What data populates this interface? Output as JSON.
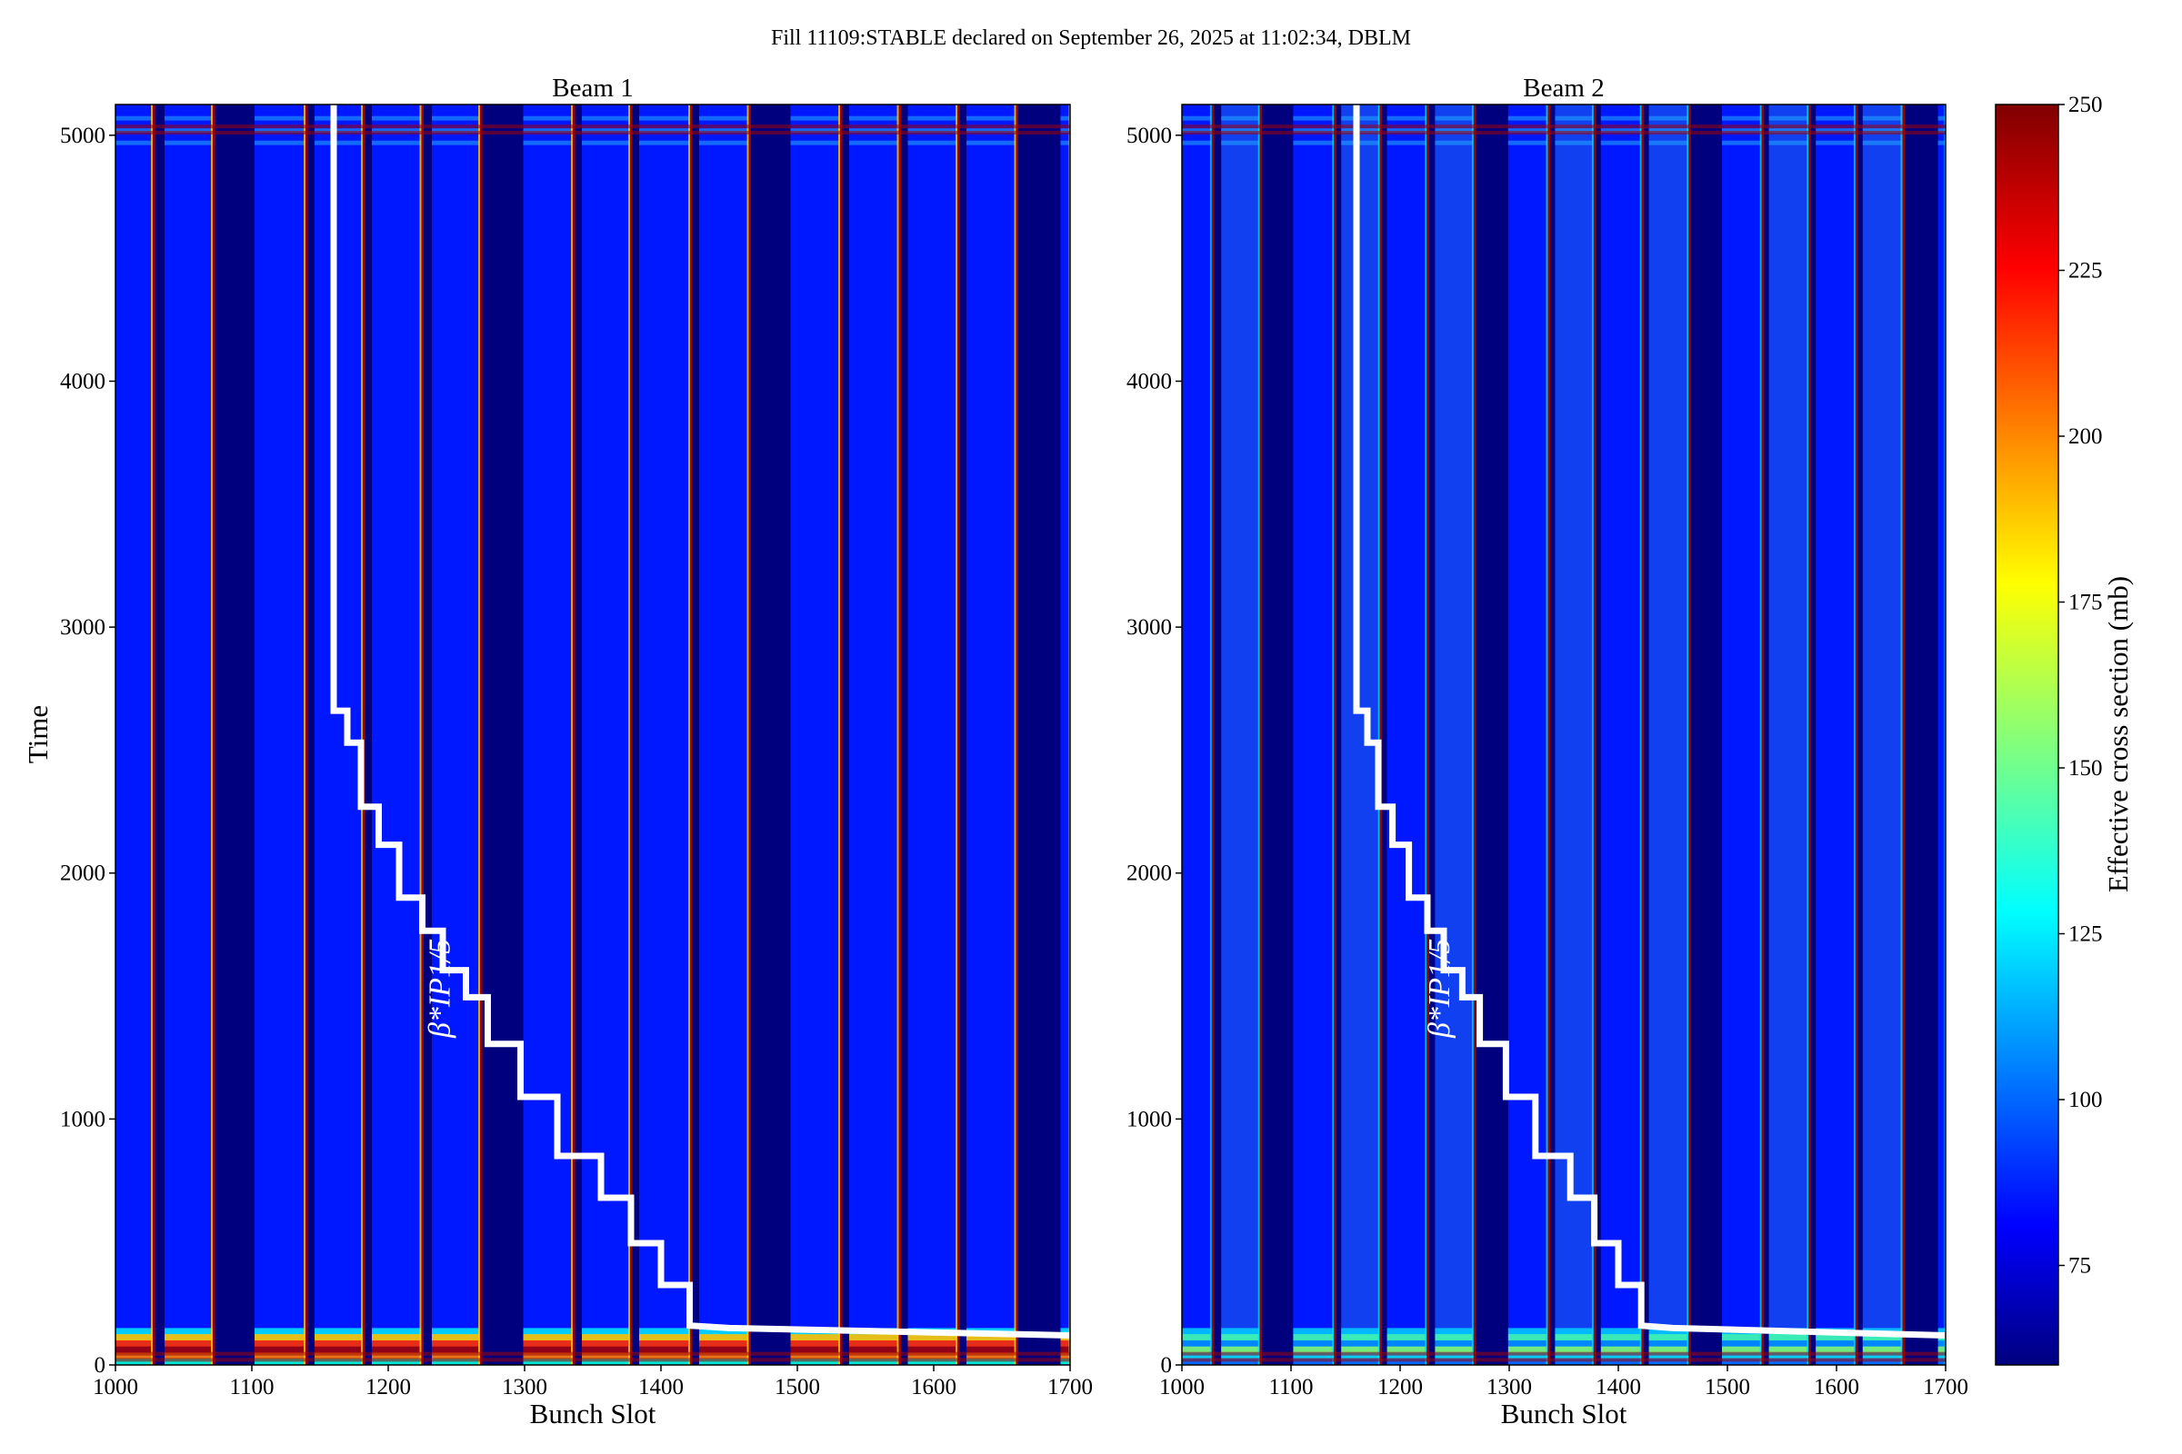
{
  "title": "Fill 11109:STABLE declared on September 26, 2025 at 11:02:34, DBLM",
  "chart_data": [
    {
      "type": "heatmap",
      "title": "Beam 1",
      "xlabel": "Bunch Slot",
      "ylabel": "Time",
      "xlim": [
        1000,
        1700
      ],
      "ylim": [
        0,
        5125
      ],
      "xticks": [
        "1000",
        "1100",
        "1200",
        "1300",
        "1400",
        "1500",
        "1600",
        "1700"
      ],
      "yticks": [
        "0",
        "1000",
        "2000",
        "3000",
        "4000",
        "5000"
      ],
      "trains": [
        [
          1000,
          1027
        ],
        [
          1036,
          1071
        ],
        [
          1102,
          1139
        ],
        [
          1146,
          1181
        ],
        [
          1188,
          1224
        ],
        [
          1232,
          1267
        ],
        [
          1299,
          1335
        ],
        [
          1342,
          1377
        ],
        [
          1384,
          1421
        ],
        [
          1428,
          1464
        ],
        [
          1495,
          1531
        ],
        [
          1538,
          1574
        ],
        [
          1581,
          1617
        ],
        [
          1624,
          1660
        ],
        [
          1693,
          1700
        ]
      ],
      "early_colors": [
        "#00e0ff",
        "#ffd000",
        "#ff3000",
        "#a00000",
        "#ff8000",
        "#00ffd0"
      ],
      "annotation": "β*IP1/5",
      "overlay_line": {
        "color": "#ffffff",
        "points": [
          [
            1160,
            5125
          ],
          [
            1160,
            2660
          ],
          [
            1170,
            2660
          ],
          [
            1170,
            2530
          ],
          [
            1180,
            2530
          ],
          [
            1180,
            2270
          ],
          [
            1193,
            2270
          ],
          [
            1193,
            2115
          ],
          [
            1208,
            2115
          ],
          [
            1208,
            1900
          ],
          [
            1225,
            1900
          ],
          [
            1225,
            1765
          ],
          [
            1240,
            1765
          ],
          [
            1240,
            1605
          ],
          [
            1257,
            1605
          ],
          [
            1257,
            1495
          ],
          [
            1273,
            1495
          ],
          [
            1273,
            1305
          ],
          [
            1297,
            1305
          ],
          [
            1297,
            1090
          ],
          [
            1324,
            1090
          ],
          [
            1324,
            850
          ],
          [
            1356,
            850
          ],
          [
            1356,
            680
          ],
          [
            1378,
            680
          ],
          [
            1378,
            495
          ],
          [
            1400,
            495
          ],
          [
            1400,
            325
          ],
          [
            1421,
            325
          ],
          [
            1421,
            160
          ],
          [
            1450,
            150
          ],
          [
            1700,
            120
          ]
        ]
      }
    },
    {
      "type": "heatmap",
      "title": "Beam 2",
      "xlabel": "Bunch Slot",
      "xlim": [
        1000,
        1700
      ],
      "ylim": [
        0,
        5125
      ],
      "xticks": [
        "1000",
        "1100",
        "1200",
        "1300",
        "1400",
        "1500",
        "1600",
        "1700"
      ],
      "yticks": [
        "0",
        "1000",
        "2000",
        "3000",
        "4000",
        "5000"
      ],
      "trains": [
        [
          1000,
          1027
        ],
        [
          1036,
          1071
        ],
        [
          1102,
          1139
        ],
        [
          1146,
          1181
        ],
        [
          1188,
          1224
        ],
        [
          1232,
          1267
        ],
        [
          1299,
          1335
        ],
        [
          1342,
          1377
        ],
        [
          1384,
          1421
        ],
        [
          1428,
          1464
        ],
        [
          1495,
          1531
        ],
        [
          1538,
          1574
        ],
        [
          1581,
          1617
        ],
        [
          1624,
          1660
        ],
        [
          1693,
          1700
        ]
      ],
      "early_colors": [
        "#00c8ff",
        "#40ffb0",
        "#0090ff",
        "#80ff70",
        "#00e0ff",
        "#0070ff"
      ],
      "annotation": "β*IP1/5",
      "overlay_line": {
        "color": "#ffffff",
        "points": [
          [
            1160,
            5125
          ],
          [
            1160,
            2660
          ],
          [
            1170,
            2660
          ],
          [
            1170,
            2530
          ],
          [
            1180,
            2530
          ],
          [
            1180,
            2270
          ],
          [
            1193,
            2270
          ],
          [
            1193,
            2115
          ],
          [
            1208,
            2115
          ],
          [
            1208,
            1900
          ],
          [
            1225,
            1900
          ],
          [
            1225,
            1765
          ],
          [
            1240,
            1765
          ],
          [
            1240,
            1605
          ],
          [
            1257,
            1605
          ],
          [
            1257,
            1495
          ],
          [
            1273,
            1495
          ],
          [
            1273,
            1305
          ],
          [
            1297,
            1305
          ],
          [
            1297,
            1090
          ],
          [
            1324,
            1090
          ],
          [
            1324,
            850
          ],
          [
            1356,
            850
          ],
          [
            1356,
            680
          ],
          [
            1378,
            680
          ],
          [
            1378,
            495
          ],
          [
            1400,
            495
          ],
          [
            1400,
            325
          ],
          [
            1421,
            325
          ],
          [
            1421,
            160
          ],
          [
            1450,
            150
          ],
          [
            1700,
            120
          ]
        ]
      }
    }
  ],
  "colorbar": {
    "label": "Effective cross section (mb)",
    "range": [
      60,
      250
    ],
    "colormap": "jet",
    "ticks": [
      "75",
      "100",
      "125",
      "150",
      "175",
      "200",
      "225",
      "250"
    ],
    "tick_values": [
      75,
      100,
      125,
      150,
      175,
      200,
      225,
      250
    ]
  },
  "colors": {
    "empty_slot": "#00007f",
    "filled_slot": "#0018ff",
    "edge": "#a00000"
  }
}
